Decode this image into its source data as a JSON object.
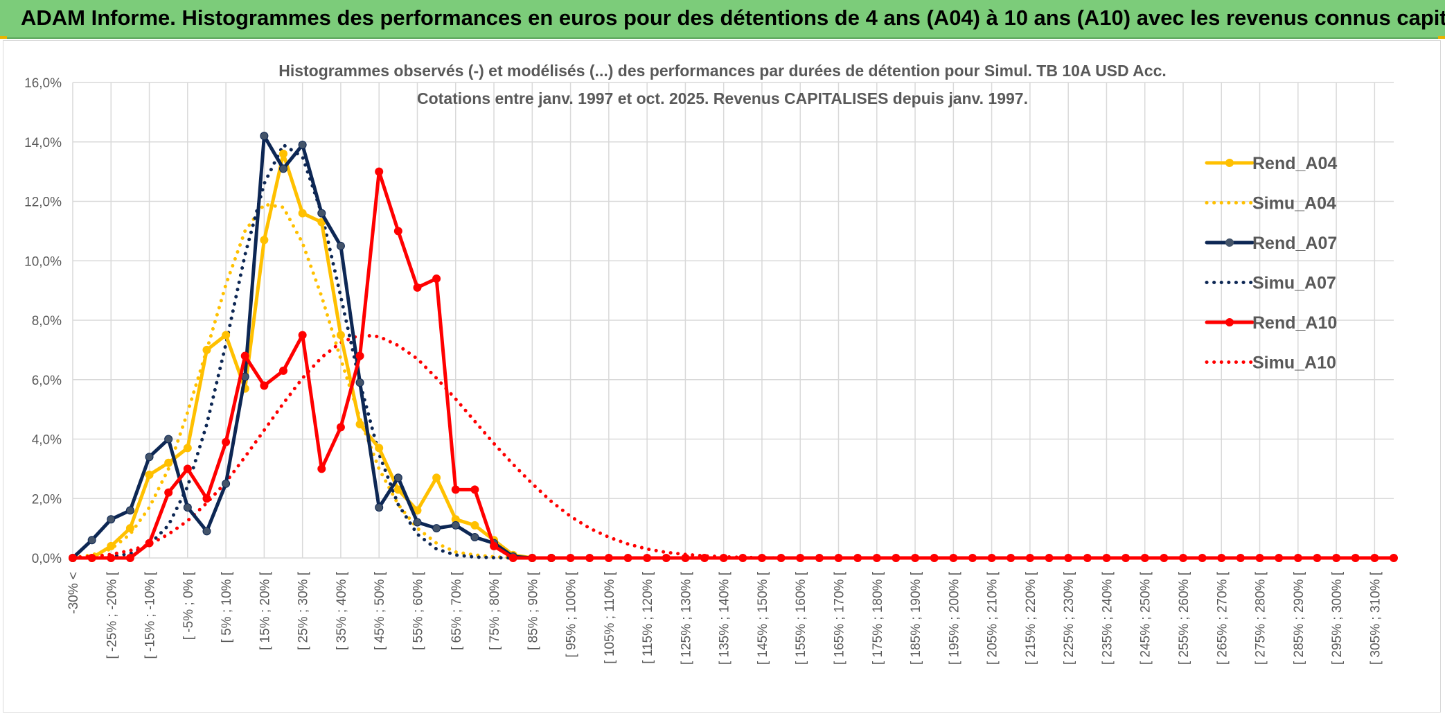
{
  "banner": {
    "title": "ADAM Informe. Histogrammes des performances en euros pour des détentions de 4 ans (A04) à 10 ans (A10) avec les revenus connus capitalisés",
    "color": "#7ccc7a"
  },
  "chart_data": {
    "type": "line",
    "title": "Histogrammes observés (-) et modélisés (...) des performances par durées de détention pour Simul. TB 10A USD Acc.",
    "subtitle": "Cotations entre janv. 1997 et oct. 2025. Revenus CAPITALISES depuis janv. 1997.",
    "ylim": [
      0,
      16
    ],
    "yticks": [
      0,
      2,
      4,
      6,
      8,
      10,
      12,
      14,
      16
    ],
    "ytick_labels": [
      "0,0%",
      "2,0%",
      "4,0%",
      "6,0%",
      "8,0%",
      "10,0%",
      "12,0%",
      "14,0%",
      "16,0%"
    ],
    "grid": true,
    "legend_position": "right",
    "x_range": [
      0,
      69
    ],
    "x_tick_labels": [
      "-30% <",
      "[ -25% ; -20% [",
      "[ -15% ; -10% [",
      "[ -5% ; 0% [",
      "[ 5% ; 10% [",
      "[ 15% ; 20% [",
      "[ 25% ; 30% [",
      "[ 35% ; 40% [",
      "[ 45% ; 50% [",
      "[ 55% ; 60% [",
      "[ 65% ; 70% [",
      "[ 75% ; 80% [",
      "[ 85% ; 90% [",
      "[ 95% ; 100% [",
      "[ 105% ; 110% [",
      "[ 115% ; 120% [",
      "[ 125% ; 130% [",
      "[ 135% ; 140% [",
      "[ 145% ; 150% [",
      "[ 155% ; 160% [",
      "[ 165% ; 170% [",
      "[ 175% ; 180% [",
      "[ 185% ; 190% [",
      "[ 195% ; 200% [",
      "[ 205% ; 210% [",
      "[ 215% ; 220% [",
      "[ 225% ; 230% [",
      "[ 235% ; 240% [",
      "[ 245% ; 250% [",
      "[ 255% ; 260% [",
      "[ 265% ; 270% [",
      "[ 275% ; 280% [",
      "[ 285% ; 290% [",
      "[ 295% ; 300% [",
      "[ 305% ; 310% ["
    ],
    "series": [
      {
        "name": "Rend_A04",
        "color": "#ffc000",
        "style": "solid",
        "markers": true,
        "values": [
          0,
          0,
          0.4,
          1.0,
          2.8,
          3.2,
          3.7,
          7.0,
          7.5,
          5.7,
          10.7,
          13.6,
          11.6,
          11.3,
          7.5,
          4.5,
          3.7,
          2.3,
          1.6,
          2.7,
          1.3,
          1.1,
          0.6,
          0.1,
          0,
          0
        ]
      },
      {
        "name": "Simu_A04",
        "color": "#ffc000",
        "style": "dotted",
        "markers": false,
        "values": [
          0.01,
          0.1,
          0.3,
          0.8,
          1.7,
          3.0,
          4.9,
          7.0,
          9.2,
          11.0,
          11.9,
          11.8,
          10.6,
          8.8,
          6.7,
          4.7,
          3.0,
          1.8,
          1.0,
          0.5,
          0.2,
          0.1,
          0.04,
          0.01
        ]
      },
      {
        "name": "Rend_A07",
        "color": "#0d2754",
        "style": "solid",
        "markers": true,
        "values": [
          0,
          0.6,
          1.3,
          1.6,
          3.4,
          4.0,
          1.7,
          0.9,
          2.5,
          6.1,
          14.2,
          13.1,
          13.9,
          11.6,
          10.5,
          5.9,
          1.7,
          2.7,
          1.2,
          1.0,
          1.1,
          0.7,
          0.5,
          0.05,
          0,
          0
        ]
      },
      {
        "name": "Simu_A07",
        "color": "#0d2754",
        "style": "dotted",
        "markers": false,
        "values": [
          0,
          0.01,
          0.05,
          0.15,
          0.45,
          1.1,
          2.4,
          4.5,
          7.2,
          10.2,
          12.6,
          13.9,
          13.5,
          11.6,
          8.8,
          5.9,
          3.5,
          1.8,
          0.8,
          0.3,
          0.1,
          0.03,
          0.01,
          0
        ]
      },
      {
        "name": "Rend_A10",
        "color": "#ff0000",
        "style": "solid",
        "markers": true,
        "values": [
          0,
          0,
          0,
          0,
          0.5,
          2.2,
          3.0,
          2.0,
          3.9,
          6.8,
          5.8,
          6.3,
          7.5,
          3.0,
          4.4,
          6.8,
          13.0,
          11.0,
          9.1,
          9.4,
          2.3,
          2.3,
          0.4,
          0,
          0,
          0,
          0,
          0,
          0,
          0,
          0,
          0,
          0,
          0,
          0,
          0,
          0,
          0,
          0,
          0,
          0,
          0,
          0,
          0,
          0,
          0,
          0,
          0,
          0,
          0,
          0,
          0,
          0,
          0,
          0,
          0,
          0,
          0,
          0,
          0,
          0,
          0,
          0,
          0,
          0,
          0,
          0,
          0,
          0,
          0
        ]
      },
      {
        "name": "Simu_A10",
        "color": "#ff0000",
        "style": "dotted",
        "markers": false,
        "values": [
          0.02,
          0.05,
          0.12,
          0.25,
          0.45,
          0.8,
          1.25,
          1.85,
          2.55,
          3.4,
          4.3,
          5.2,
          6.05,
          6.75,
          7.25,
          7.5,
          7.45,
          7.15,
          6.7,
          6.05,
          5.35,
          4.6,
          3.85,
          3.15,
          2.5,
          1.9,
          1.4,
          1.0,
          0.7,
          0.47,
          0.3,
          0.19,
          0.12,
          0.07,
          0.04,
          0.02,
          0.01,
          0
        ]
      }
    ]
  }
}
